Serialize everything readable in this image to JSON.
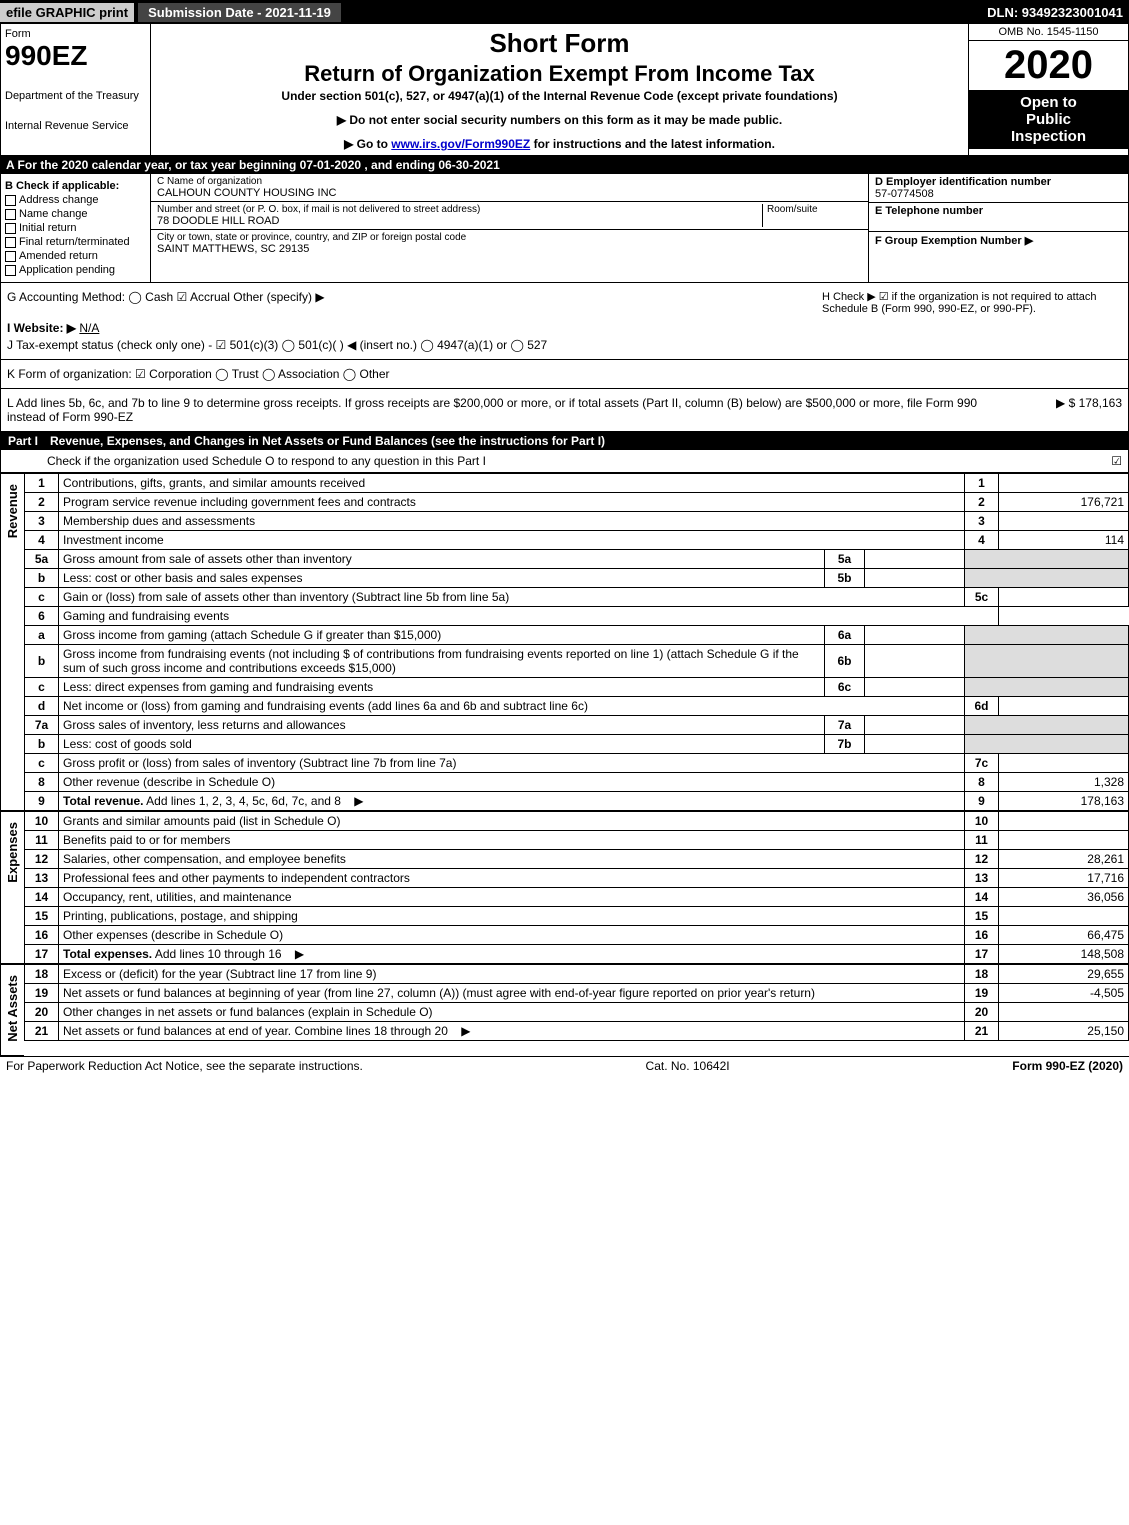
{
  "topbar": {
    "efile": "efile GRAPHIC print",
    "submission_label": "Submission Date - 2021-11-19",
    "dln": "DLN: 93492323001041"
  },
  "header": {
    "form_word": "Form",
    "form_number": "990EZ",
    "dept_line1": "Department of the Treasury",
    "dept_line2": "Internal Revenue Service",
    "short_form": "Short Form",
    "return_title": "Return of Organization Exempt From Income Tax",
    "under_section": "Under section 501(c), 527, or 4947(a)(1) of the Internal Revenue Code (except private foundations)",
    "no_ssn": "▶ Do not enter social security numbers on this form as it may be made public.",
    "goto": "▶ Go to ",
    "goto_link": "www.irs.gov/Form990EZ",
    "goto_suffix": " for instructions and the latest information.",
    "omb": "OMB No. 1545-1150",
    "year": "2020",
    "open1": "Open to",
    "open2": "Public",
    "open3": "Inspection"
  },
  "period": "A For the 2020 calendar year, or tax year beginning 07-01-2020 , and ending 06-30-2021",
  "entity": {
    "check_label": "B  Check if applicable:",
    "checks": [
      "Address change",
      "Name change",
      "Initial return",
      "Final return/terminated",
      "Amended return",
      "Application pending"
    ],
    "name_label": "C Name of organization",
    "name": "CALHOUN COUNTY HOUSING INC",
    "street_label": "Number and street (or P. O. box, if mail is not delivered to street address)",
    "room_label": "Room/suite",
    "street": "78 DOODLE HILL ROAD",
    "city_label": "City or town, state or province, country, and ZIP or foreign postal code",
    "city": "SAINT MATTHEWS, SC  29135",
    "ein_label": "D Employer identification number",
    "ein": "57-0774508",
    "phone_label": "E Telephone number",
    "group_label": "F Group Exemption Number  ▶"
  },
  "info": {
    "g": "G Accounting Method:   ◯ Cash   ☑ Accrual   Other (specify) ▶",
    "h": "H  Check ▶ ☑ if the organization is not required to attach Schedule B (Form 990, 990-EZ, or 990-PF).",
    "i_label": "I Website: ▶",
    "i_val": "N/A",
    "j": "J Tax-exempt status (check only one) - ☑ 501(c)(3)  ◯ 501(c)(  ) ◀ (insert no.)  ◯ 4947(a)(1) or  ◯ 527",
    "k": "K Form of organization:  ☑ Corporation  ◯ Trust  ◯ Association  ◯ Other",
    "l": "L Add lines 5b, 6c, and 7b to line 9 to determine gross receipts. If gross receipts are $200,000 or more, or if total assets (Part II, column (B) below) are $500,000 or more, file Form 990 instead of Form 990-EZ",
    "l_amount": "▶ $ 178,163"
  },
  "part1": {
    "num": "Part I",
    "title": "Revenue, Expenses, and Changes in Net Assets or Fund Balances (see the instructions for Part I)",
    "check_line": "Check if the organization used Schedule O to respond to any question in this Part I",
    "check_mark": "☑"
  },
  "sections": {
    "revenue_label": "Revenue",
    "expenses_label": "Expenses",
    "netassets_label": "Net Assets"
  },
  "revenue": [
    {
      "n": "1",
      "d": "Contributions, gifts, grants, and similar amounts received",
      "ln": "1",
      "amt": ""
    },
    {
      "n": "2",
      "d": "Program service revenue including government fees and contracts",
      "ln": "2",
      "amt": "176,721"
    },
    {
      "n": "3",
      "d": "Membership dues and assessments",
      "ln": "3",
      "amt": ""
    },
    {
      "n": "4",
      "d": "Investment income",
      "ln": "4",
      "amt": "114"
    },
    {
      "n": "5a",
      "d": "Gross amount from sale of assets other than inventory",
      "sub": "5a",
      "subval": "",
      "shade": true
    },
    {
      "n": "b",
      "d": "Less: cost or other basis and sales expenses",
      "sub": "5b",
      "subval": "",
      "shade": true
    },
    {
      "n": "c",
      "d": "Gain or (loss) from sale of assets other than inventory (Subtract line 5b from line 5a)",
      "ln": "5c",
      "amt": ""
    },
    {
      "n": "6",
      "d": "Gaming and fundraising events",
      "blank": true
    },
    {
      "n": "a",
      "d": "Gross income from gaming (attach Schedule G if greater than $15,000)",
      "sub": "6a",
      "subval": "",
      "shade": true
    },
    {
      "n": "b",
      "d": "Gross income from fundraising events (not including $                 of contributions from fundraising events reported on line 1) (attach Schedule G if the sum of such gross income and contributions exceeds $15,000)",
      "sub": "6b",
      "subval": "",
      "shade": true
    },
    {
      "n": "c",
      "d": "Less: direct expenses from gaming and fundraising events",
      "sub": "6c",
      "subval": "",
      "shade": true
    },
    {
      "n": "d",
      "d": "Net income or (loss) from gaming and fundraising events (add lines 6a and 6b and subtract line 6c)",
      "ln": "6d",
      "amt": ""
    },
    {
      "n": "7a",
      "d": "Gross sales of inventory, less returns and allowances",
      "sub": "7a",
      "subval": "",
      "shade": true
    },
    {
      "n": "b",
      "d": "Less: cost of goods sold",
      "sub": "7b",
      "subval": "",
      "shade": true
    },
    {
      "n": "c",
      "d": "Gross profit or (loss) from sales of inventory (Subtract line 7b from line 7a)",
      "ln": "7c",
      "amt": ""
    },
    {
      "n": "8",
      "d": "Other revenue (describe in Schedule O)",
      "ln": "8",
      "amt": "1,328"
    },
    {
      "n": "9",
      "d": "Total revenue. Add lines 1, 2, 3, 4, 5c, 6d, 7c, and 8",
      "ln": "9",
      "amt": "178,163",
      "bold": true,
      "arrow": true
    }
  ],
  "expenses": [
    {
      "n": "10",
      "d": "Grants and similar amounts paid (list in Schedule O)",
      "ln": "10",
      "amt": ""
    },
    {
      "n": "11",
      "d": "Benefits paid to or for members",
      "ln": "11",
      "amt": ""
    },
    {
      "n": "12",
      "d": "Salaries, other compensation, and employee benefits",
      "ln": "12",
      "amt": "28,261"
    },
    {
      "n": "13",
      "d": "Professional fees and other payments to independent contractors",
      "ln": "13",
      "amt": "17,716"
    },
    {
      "n": "14",
      "d": "Occupancy, rent, utilities, and maintenance",
      "ln": "14",
      "amt": "36,056"
    },
    {
      "n": "15",
      "d": "Printing, publications, postage, and shipping",
      "ln": "15",
      "amt": ""
    },
    {
      "n": "16",
      "d": "Other expenses (describe in Schedule O)",
      "ln": "16",
      "amt": "66,475"
    },
    {
      "n": "17",
      "d": "Total expenses. Add lines 10 through 16",
      "ln": "17",
      "amt": "148,508",
      "bold": true,
      "arrow": true
    }
  ],
  "netassets": [
    {
      "n": "18",
      "d": "Excess or (deficit) for the year (Subtract line 17 from line 9)",
      "ln": "18",
      "amt": "29,655"
    },
    {
      "n": "19",
      "d": "Net assets or fund balances at beginning of year (from line 27, column (A)) (must agree with end-of-year figure reported on prior year's return)",
      "ln": "19",
      "amt": "-4,505"
    },
    {
      "n": "20",
      "d": "Other changes in net assets or fund balances (explain in Schedule O)",
      "ln": "20",
      "amt": ""
    },
    {
      "n": "21",
      "d": "Net assets or fund balances at end of year. Combine lines 18 through 20",
      "ln": "21",
      "amt": "25,150",
      "arrow": true
    }
  ],
  "footer": {
    "left": "For Paperwork Reduction Act Notice, see the separate instructions.",
    "mid": "Cat. No. 10642I",
    "right": "Form 990-EZ (2020)"
  },
  "colors": {
    "black": "#000000",
    "white": "#ffffff",
    "shade": "#dddddd",
    "topbar_grey": "#cccccc",
    "topbar_dark": "#444444",
    "link": "#0000cc"
  }
}
